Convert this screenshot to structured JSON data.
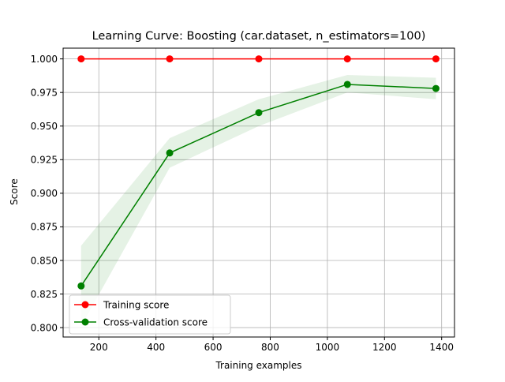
{
  "chart_data": {
    "type": "line",
    "title": "Learning Curve: Boosting (car.dataset, n_estimators=100)",
    "xlabel": "Training examples",
    "ylabel": "Score",
    "xlim": [
      75,
      1445
    ],
    "ylim": [
      0.793,
      1.008
    ],
    "x_ticks": [
      200,
      400,
      600,
      800,
      1000,
      1200,
      1400
    ],
    "y_ticks": [
      0.8,
      0.825,
      0.85,
      0.875,
      0.9,
      0.925,
      0.95,
      0.975,
      1.0
    ],
    "grid": true,
    "legend_position": "lower-left",
    "x": [
      138,
      448,
      760,
      1070,
      1380
    ],
    "series": [
      {
        "name": "Training score",
        "color": "#ff0000",
        "values": [
          1.0,
          1.0,
          1.0,
          1.0,
          1.0
        ],
        "band_lower": [
          1.0,
          1.0,
          1.0,
          1.0,
          1.0
        ],
        "band_upper": [
          1.0,
          1.0,
          1.0,
          1.0,
          1.0
        ]
      },
      {
        "name": "Cross-validation score",
        "color": "#008000",
        "values": [
          0.831,
          0.93,
          0.96,
          0.981,
          0.978
        ],
        "band_lower": [
          0.801,
          0.919,
          0.95,
          0.975,
          0.97
        ],
        "band_upper": [
          0.861,
          0.941,
          0.97,
          0.988,
          0.986
        ]
      }
    ]
  }
}
